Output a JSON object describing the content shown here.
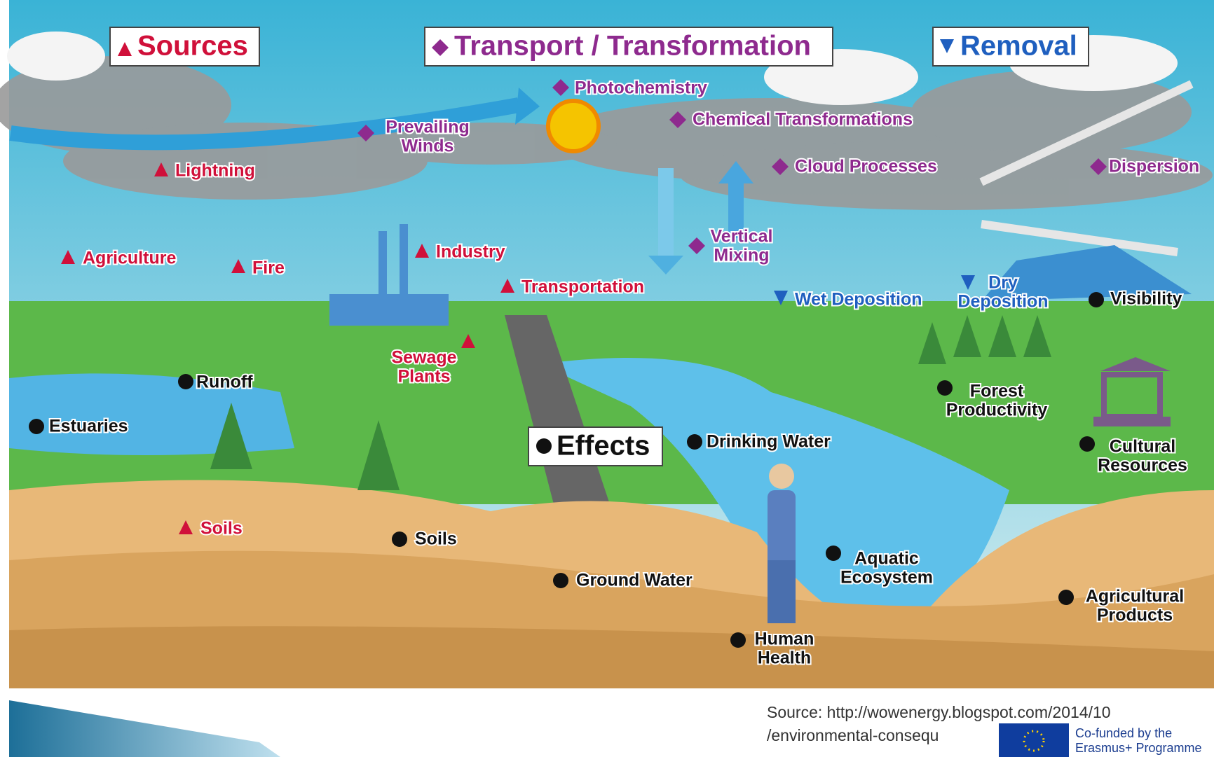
{
  "legend": {
    "sources": "Sources",
    "transport": "Transport / Transformation",
    "removal": "Removal",
    "effects": "Effects"
  },
  "sources": [
    [
      "Lightning"
    ],
    [
      "Agriculture"
    ],
    [
      "Fire"
    ],
    [
      "Industry"
    ],
    [
      "Transportation"
    ],
    [
      "Sewage",
      "Plants"
    ],
    [
      "Soils"
    ]
  ],
  "transport": [
    [
      "Photochemistry"
    ],
    [
      "Prevailing",
      "Winds"
    ],
    [
      "Chemical Transformations"
    ],
    [
      "Cloud Processes"
    ],
    [
      "Vertical",
      "Mixing"
    ],
    [
      "Dispersion"
    ]
  ],
  "removal": [
    [
      "Wet Deposition"
    ],
    [
      "Dry",
      "Deposition"
    ]
  ],
  "effects": [
    [
      "Runoff"
    ],
    [
      "Estuaries"
    ],
    [
      "Soils"
    ],
    [
      "Ground Water"
    ],
    [
      "Drinking Water"
    ],
    [
      "Human",
      "Health"
    ],
    [
      "Aquatic",
      "Ecosystem"
    ],
    [
      "Forest",
      "Productivity"
    ],
    [
      "Visibility"
    ],
    [
      "Cultural",
      "Resources"
    ],
    [
      "Agricultural",
      "Products"
    ]
  ],
  "footer": {
    "source": [
      "Source: http://wowenergy.blogspot.com/2014/10",
      "/environmental-consequ"
    ],
    "eu": [
      "Co-funded by the",
      "Erasmus+ Programme"
    ]
  }
}
